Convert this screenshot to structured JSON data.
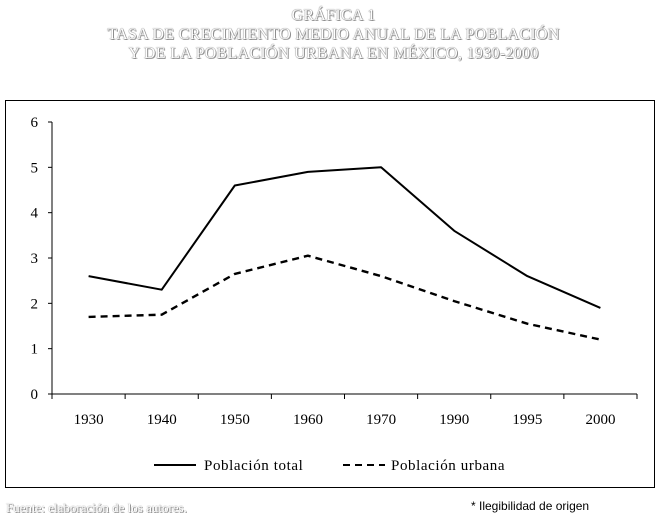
{
  "header": {
    "line1": "GRÁFICA 1",
    "line2": "TASA DE CRECIMIENTO MEDIO ANUAL DE LA POBLACIÓN",
    "line3": "Y DE LA POBLACIÓN URBANA EN MÉXICO, 1930-2000"
  },
  "footer": {
    "source": "Fuente: elaboración de los autores.",
    "note": "* Ilegibilidad de origen"
  },
  "colors": {
    "axis": "#000000",
    "series": "#000000"
  },
  "chart_data": {
    "type": "line",
    "title": "TASA DE CRECIMIENTO MEDIO ANUAL DE LA POBLACIÓN Y DE LA POBLACIÓN URBANA EN MÉXICO, 1930-2000",
    "categories": [
      "1930",
      "1940",
      "1950",
      "1960",
      "1970",
      "1990",
      "1995",
      "2000"
    ],
    "ylim": [
      0,
      6
    ],
    "yticks": [
      "0",
      "1",
      "2",
      "3",
      "4",
      "5",
      "6"
    ],
    "xlabel": "",
    "ylabel": "",
    "grid": false,
    "legend_position": "bottom",
    "series": [
      {
        "name": "Población total",
        "style": "solid",
        "values": [
          2.6,
          2.3,
          4.6,
          4.9,
          5.0,
          3.6,
          2.6,
          1.9
        ]
      },
      {
        "name": "Población urbana",
        "style": "dashed",
        "values": [
          1.7,
          1.75,
          2.65,
          3.05,
          2.6,
          2.05,
          1.55,
          1.2
        ]
      }
    ]
  }
}
